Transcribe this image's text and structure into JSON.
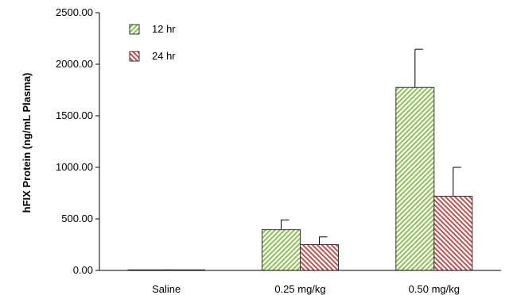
{
  "chart_data": {
    "type": "bar",
    "ylabel": "hFIX Protein (ng/mL Plasma)",
    "ylim": [
      0,
      2500
    ],
    "yticks": [
      "0.00",
      "500.00",
      "1000.00",
      "1500.00",
      "2000.00",
      "2500.00"
    ],
    "categories": [
      "Saline",
      "0.25 mg/kg",
      "0.50 mg/kg"
    ],
    "series": [
      {
        "name": "12 hr",
        "values": [
          5,
          395,
          1775
        ],
        "errors": [
          0,
          95,
          370
        ],
        "color": "#8cc152",
        "pattern": "forward-hatch"
      },
      {
        "name": "24 hr",
        "values": [
          5,
          250,
          720
        ],
        "errors": [
          0,
          75,
          280
        ],
        "color": "#c0504d",
        "pattern": "back-hatch"
      }
    ],
    "legend_position": "top-left",
    "grid": false
  }
}
